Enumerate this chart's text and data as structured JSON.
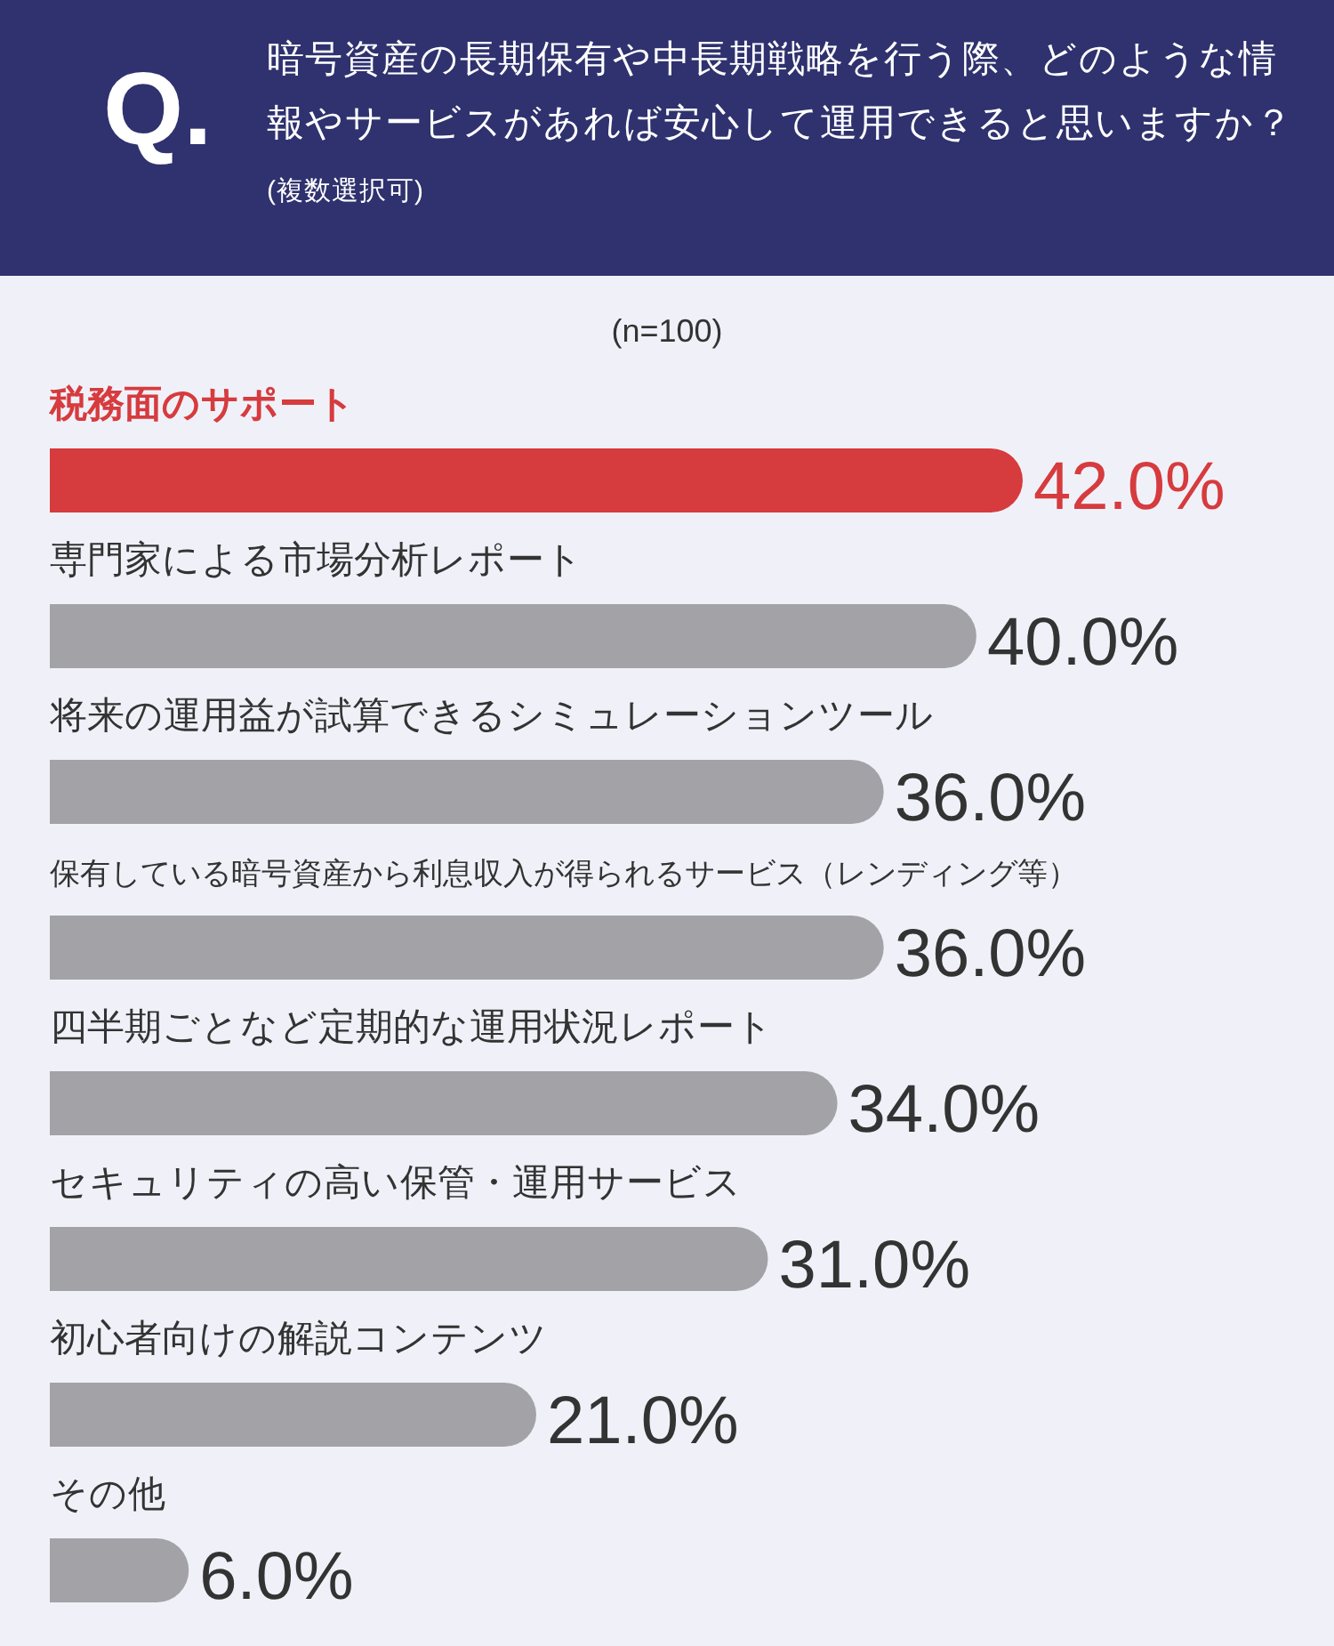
{
  "chart_data": {
    "type": "bar",
    "orientation": "horizontal",
    "title": "暗号資産の長期保有や中長期戦略を行う際、どのような情報やサービスがあれば安心して運用できると思いますか？",
    "subtitle": "(複数選択可)",
    "annotations": [
      "Q.",
      "(n=100)"
    ],
    "categories": [
      "税務面のサポート",
      "専門家による市場分析レポート",
      "将来の運用益が試算できるシミュレーションツール",
      "保有している暗号資産から利息収入が得られるサービス（レンディング等）",
      "四半期ごとなど定期的な運用状況レポート",
      "セキュリティの高い保管・運用サービス",
      "初心者向けの解説コンテンツ",
      "その他"
    ],
    "values": [
      42,
      40,
      36,
      36,
      34,
      31,
      21,
      6
    ],
    "value_labels": [
      "42.0%",
      "40.0%",
      "36.0%",
      "36.0%",
      "34.0%",
      "31.0%",
      "21.0%",
      "6.0%"
    ],
    "colors": [
      "#d63b3e",
      "#a3a3a7",
      "#a3a3a7",
      "#a3a3a7",
      "#a3a3a7",
      "#a3a3a7",
      "#a3a3a7",
      "#a3a3a7"
    ]
  }
}
